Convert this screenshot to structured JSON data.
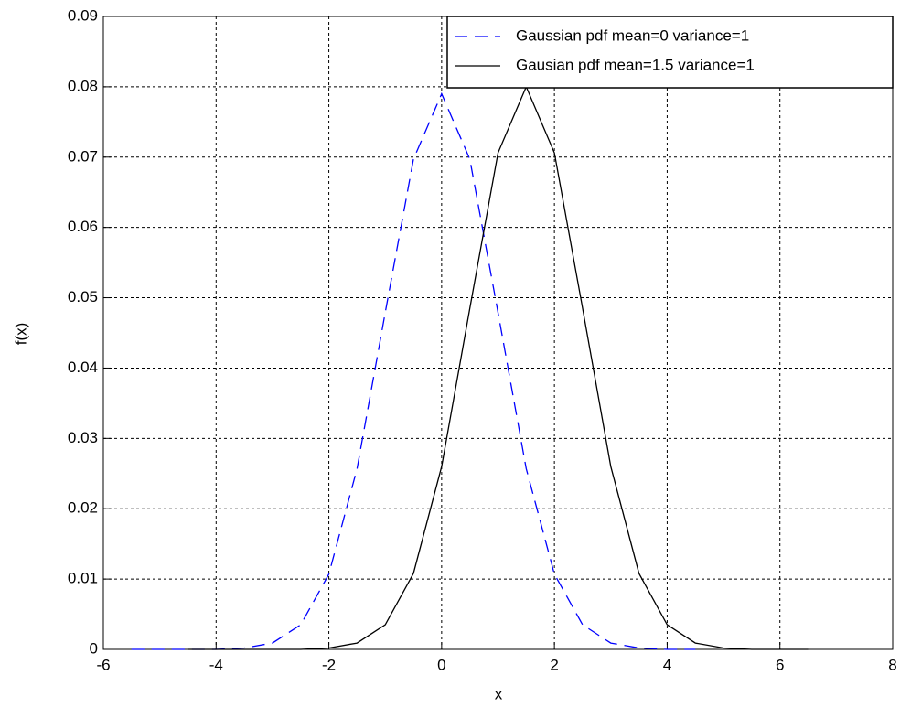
{
  "chart_data": {
    "type": "line",
    "xlabel": "x",
    "ylabel": "f(x)",
    "xlim": [
      -6,
      8
    ],
    "xticks": [
      -6,
      -4,
      -2,
      0,
      2,
      4,
      6,
      8
    ],
    "ylim": [
      0,
      0.09
    ],
    "yticks": [
      0,
      0.01,
      0.02,
      0.03,
      0.04,
      0.05,
      0.06,
      0.07,
      0.08,
      0.09
    ],
    "grid": true,
    "legend_position": "upper right",
    "series": [
      {
        "name": "Gaussian pdf mean=0 variance=1",
        "color": "#0000ff",
        "dash": true,
        "x": [
          -5.5,
          -5,
          -4.5,
          -4,
          -3.5,
          -3,
          -2.5,
          -2,
          -1.5,
          -1,
          -0.5,
          0,
          0.5,
          1,
          1.5,
          2,
          2.5,
          3,
          3.5,
          4,
          4.5
        ],
        "values": [
          0,
          0,
          0,
          0,
          0.0002,
          0.0009,
          0.0035,
          0.0107,
          0.0257,
          0.0479,
          0.0697,
          0.079,
          0.0697,
          0.0479,
          0.0257,
          0.0107,
          0.0035,
          0.0009,
          0.0002,
          0,
          0
        ]
      },
      {
        "name": "Gausian pdf mean=1.5 variance=1",
        "color": "#000000",
        "dash": false,
        "x": [
          -4.5,
          -4,
          -3.5,
          -3,
          -2.5,
          -2,
          -1.5,
          -1,
          -0.5,
          0,
          0.5,
          1,
          1.5,
          2,
          2.5,
          3,
          3.5,
          4,
          4.5,
          5,
          5.5,
          6,
          6.5
        ],
        "values": [
          0,
          0,
          0,
          0,
          0,
          0.0002,
          0.0009,
          0.0035,
          0.0108,
          0.026,
          0.0485,
          0.0706,
          0.08,
          0.0706,
          0.0485,
          0.026,
          0.0108,
          0.0035,
          0.0009,
          0.0002,
          0,
          0,
          0
        ]
      }
    ]
  }
}
